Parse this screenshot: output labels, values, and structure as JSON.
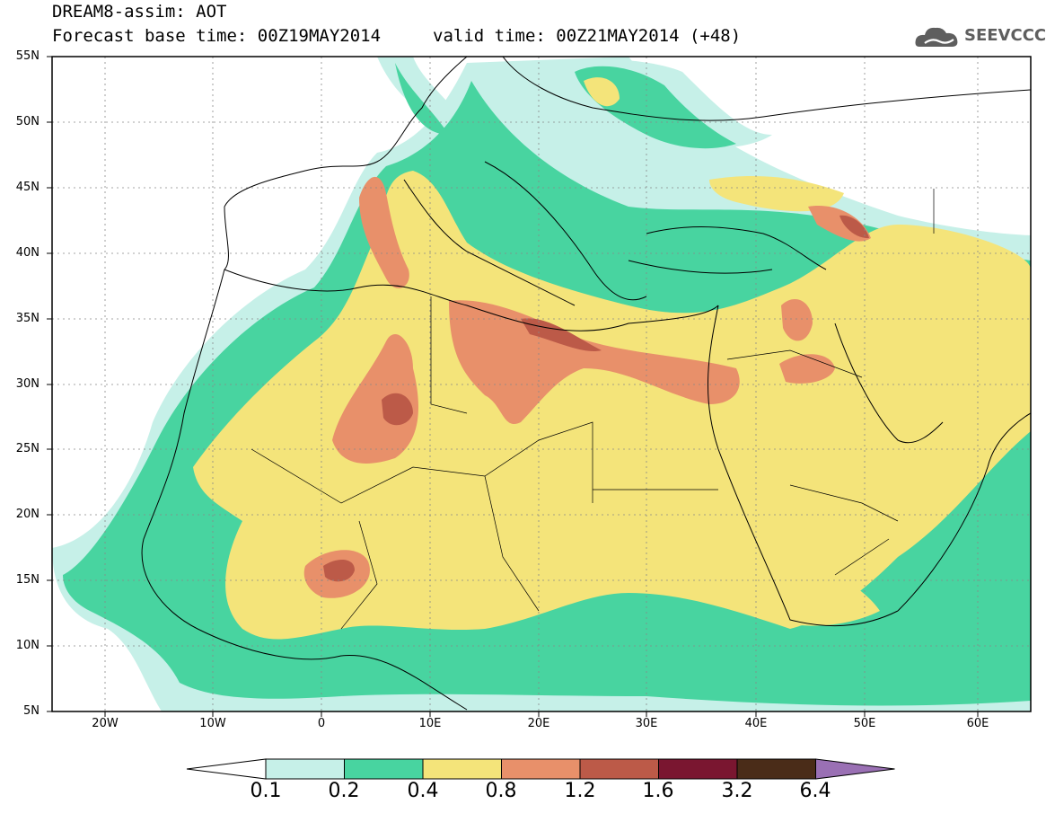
{
  "header": {
    "title": "DREAM8-assim: AOT",
    "base_time": "Forecast base time: 00Z19MAY2014",
    "valid_time": "valid time: 00Z21MAY2014 (+48)",
    "logo_text": "SEEVCCC",
    "logo_icon": "cloud-logo-icon"
  },
  "map": {
    "lat_labels": [
      "55N",
      "50N",
      "45N",
      "40N",
      "35N",
      "30N",
      "25N",
      "20N",
      "15N",
      "10N",
      "5N"
    ],
    "lon_labels": [
      "20W",
      "10W",
      "0",
      "10E",
      "20E",
      "30E",
      "40E",
      "50E",
      "60E"
    ],
    "extent": {
      "lon_min": -25,
      "lon_max": 65,
      "lat_min": 5,
      "lat_max": 55
    }
  },
  "legend": {
    "levels": [
      "0.1",
      "0.2",
      "0.4",
      "0.8",
      "1.2",
      "1.6",
      "3.2",
      "6.4"
    ],
    "colors": [
      "#ffffff",
      "#c6f0e8",
      "#48d4a0",
      "#f4e47a",
      "#e8906a",
      "#bc5a48",
      "#7a1630",
      "#4a2c18",
      "#9a70b4"
    ]
  }
}
